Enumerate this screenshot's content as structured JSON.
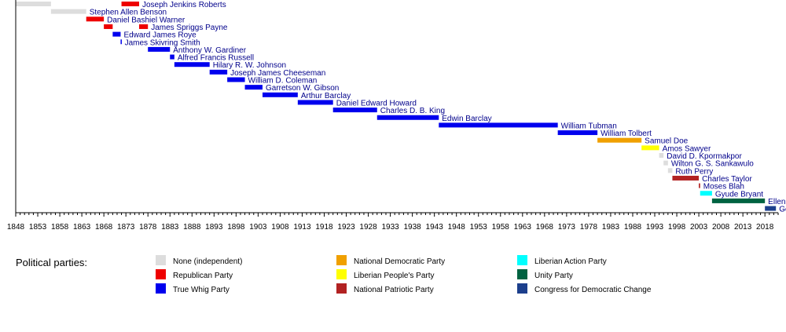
{
  "chart_data": {
    "type": "bar",
    "orientation": "horizontal-timeline",
    "x_range": [
      1848,
      2021
    ],
    "x_ticks": [
      "1848",
      "1853",
      "1858",
      "1863",
      "1868",
      "1873",
      "1878",
      "1883",
      "1888",
      "1893",
      "1898",
      "1903",
      "1908",
      "1913",
      "1918",
      "1923",
      "1928",
      "1933",
      "1938",
      "1943",
      "1948",
      "1953",
      "1958",
      "1963",
      "1968",
      "1973",
      "1978",
      "1983",
      "1988",
      "1993",
      "1998",
      "2003",
      "2008",
      "2013",
      "2018"
    ],
    "grid": false,
    "legend_placement": "bottom",
    "legend_title": "Political parties:",
    "parties": [
      {
        "key": "ind",
        "name": "None (independent)",
        "color": "#dddddd"
      },
      {
        "key": "rep",
        "name": "Republican Party",
        "color": "#ee0000"
      },
      {
        "key": "twp",
        "name": "True Whig Party",
        "color": "#0000ee"
      },
      {
        "key": "ndp",
        "name": "National Democratic Party",
        "color": "#f0a000"
      },
      {
        "key": "lpp",
        "name": "Liberian People's Party",
        "color": "#ffff00"
      },
      {
        "key": "npp",
        "name": "National Patriotic Party",
        "color": "#b22222"
      },
      {
        "key": "lap",
        "name": "Liberian Action Party",
        "color": "#00ffff"
      },
      {
        "key": "up",
        "name": "Unity Party",
        "color": "#006341"
      },
      {
        "key": "cdc",
        "name": "Congress for Democratic Change",
        "color": "#1c3f8c"
      }
    ],
    "presidents": [
      {
        "name": "Joseph Jenkins Roberts",
        "start": 1848.0,
        "end": 1856.0,
        "party": "ind"
      },
      {
        "name": "",
        "start": 1872.0,
        "end": 1876.0,
        "party": "rep"
      },
      {
        "name": "Stephen Allen Benson",
        "start": 1856.0,
        "end": 1864.0,
        "party": "ind"
      },
      {
        "name": "Daniel Bashiel Warner",
        "start": 1864.0,
        "end": 1868.0,
        "party": "rep"
      },
      {
        "name": "James Spriggs Payne",
        "start": 1868.0,
        "end": 1870.0,
        "party": "rep"
      },
      {
        "name": "",
        "start": 1876.0,
        "end": 1878.0,
        "party": "rep"
      },
      {
        "name": "Edward James Roye",
        "start": 1870.0,
        "end": 1871.8,
        "party": "twp"
      },
      {
        "name": "James Skivring Smith",
        "start": 1871.8,
        "end": 1872.0,
        "party": "twp"
      },
      {
        "name": "Anthony W. Gardiner",
        "start": 1878.0,
        "end": 1883.0,
        "party": "twp"
      },
      {
        "name": "Alfred Francis Russell",
        "start": 1883.0,
        "end": 1884.0,
        "party": "twp"
      },
      {
        "name": "Hilary R. W. Johnson",
        "start": 1884.0,
        "end": 1892.0,
        "party": "twp"
      },
      {
        "name": "Joseph James Cheeseman",
        "start": 1892.0,
        "end": 1896.0,
        "party": "twp"
      },
      {
        "name": "William D. Coleman",
        "start": 1896.0,
        "end": 1900.0,
        "party": "twp"
      },
      {
        "name": "Garretson W. Gibson",
        "start": 1900.0,
        "end": 1904.0,
        "party": "twp"
      },
      {
        "name": "Arthur Barclay",
        "start": 1904.0,
        "end": 1912.0,
        "party": "twp"
      },
      {
        "name": "Daniel Edward Howard",
        "start": 1912.0,
        "end": 1920.0,
        "party": "twp"
      },
      {
        "name": "Charles D. B. King",
        "start": 1920.0,
        "end": 1930.0,
        "party": "twp"
      },
      {
        "name": "Edwin Barclay",
        "start": 1930.0,
        "end": 1944.0,
        "party": "twp"
      },
      {
        "name": "William Tubman",
        "start": 1944.0,
        "end": 1971.0,
        "party": "twp"
      },
      {
        "name": "William Tolbert",
        "start": 1971.0,
        "end": 1980.0,
        "party": "twp"
      },
      {
        "name": "Samuel Doe",
        "start": 1980.0,
        "end": 1990.0,
        "party": "ndp"
      },
      {
        "name": "Amos Sawyer",
        "start": 1990.0,
        "end": 1994.0,
        "party": "lpp"
      },
      {
        "name": "David D. Kpormakpor",
        "start": 1994.0,
        "end": 1995.0,
        "party": "ind"
      },
      {
        "name": "Wilton G. S. Sankawulo",
        "start": 1995.0,
        "end": 1996.0,
        "party": "ind"
      },
      {
        "name": "Ruth Perry",
        "start": 1996.0,
        "end": 1997.0,
        "party": "ind"
      },
      {
        "name": "Charles Taylor",
        "start": 1997.0,
        "end": 2003.0,
        "party": "npp"
      },
      {
        "name": "Moses Blah",
        "start": 2003.0,
        "end": 2003.3,
        "party": "npp"
      },
      {
        "name": "Gyude Bryant",
        "start": 2003.3,
        "end": 2006.0,
        "party": "lap"
      },
      {
        "name": "Ellen Johnson Sirleaf",
        "start": 2006.0,
        "end": 2018.0,
        "party": "up"
      },
      {
        "name": "George Weah",
        "start": 2018.0,
        "end": 2020.5,
        "party": "cdc"
      }
    ]
  }
}
